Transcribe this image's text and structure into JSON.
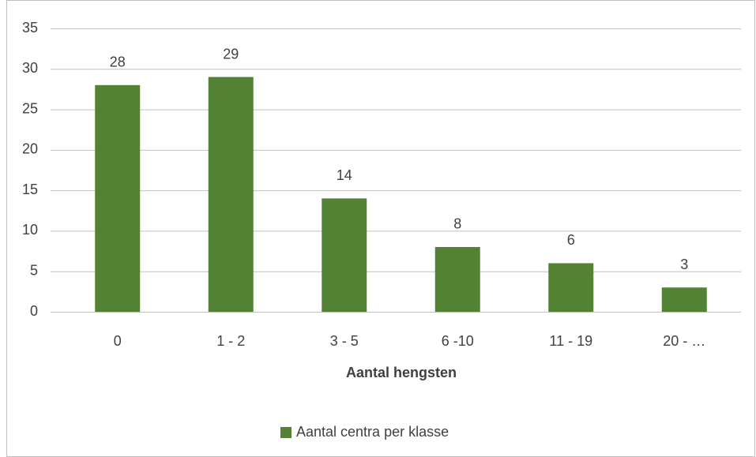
{
  "chart_data": {
    "type": "bar",
    "xlabel": "Aantal hengsten",
    "categories": [
      "0",
      "1 - 2",
      "3 - 5",
      "6 -10",
      "11 - 19",
      "20 - …"
    ],
    "series": [
      {
        "name": "Aantal centra per klasse",
        "color": "#548235",
        "values": [
          28,
          29,
          14,
          8,
          6,
          3
        ]
      }
    ],
    "ylim": [
      0,
      35
    ],
    "yticks": [
      0,
      5,
      10,
      15,
      20,
      25,
      30,
      35
    ],
    "grid": true,
    "legend": "bottom"
  }
}
